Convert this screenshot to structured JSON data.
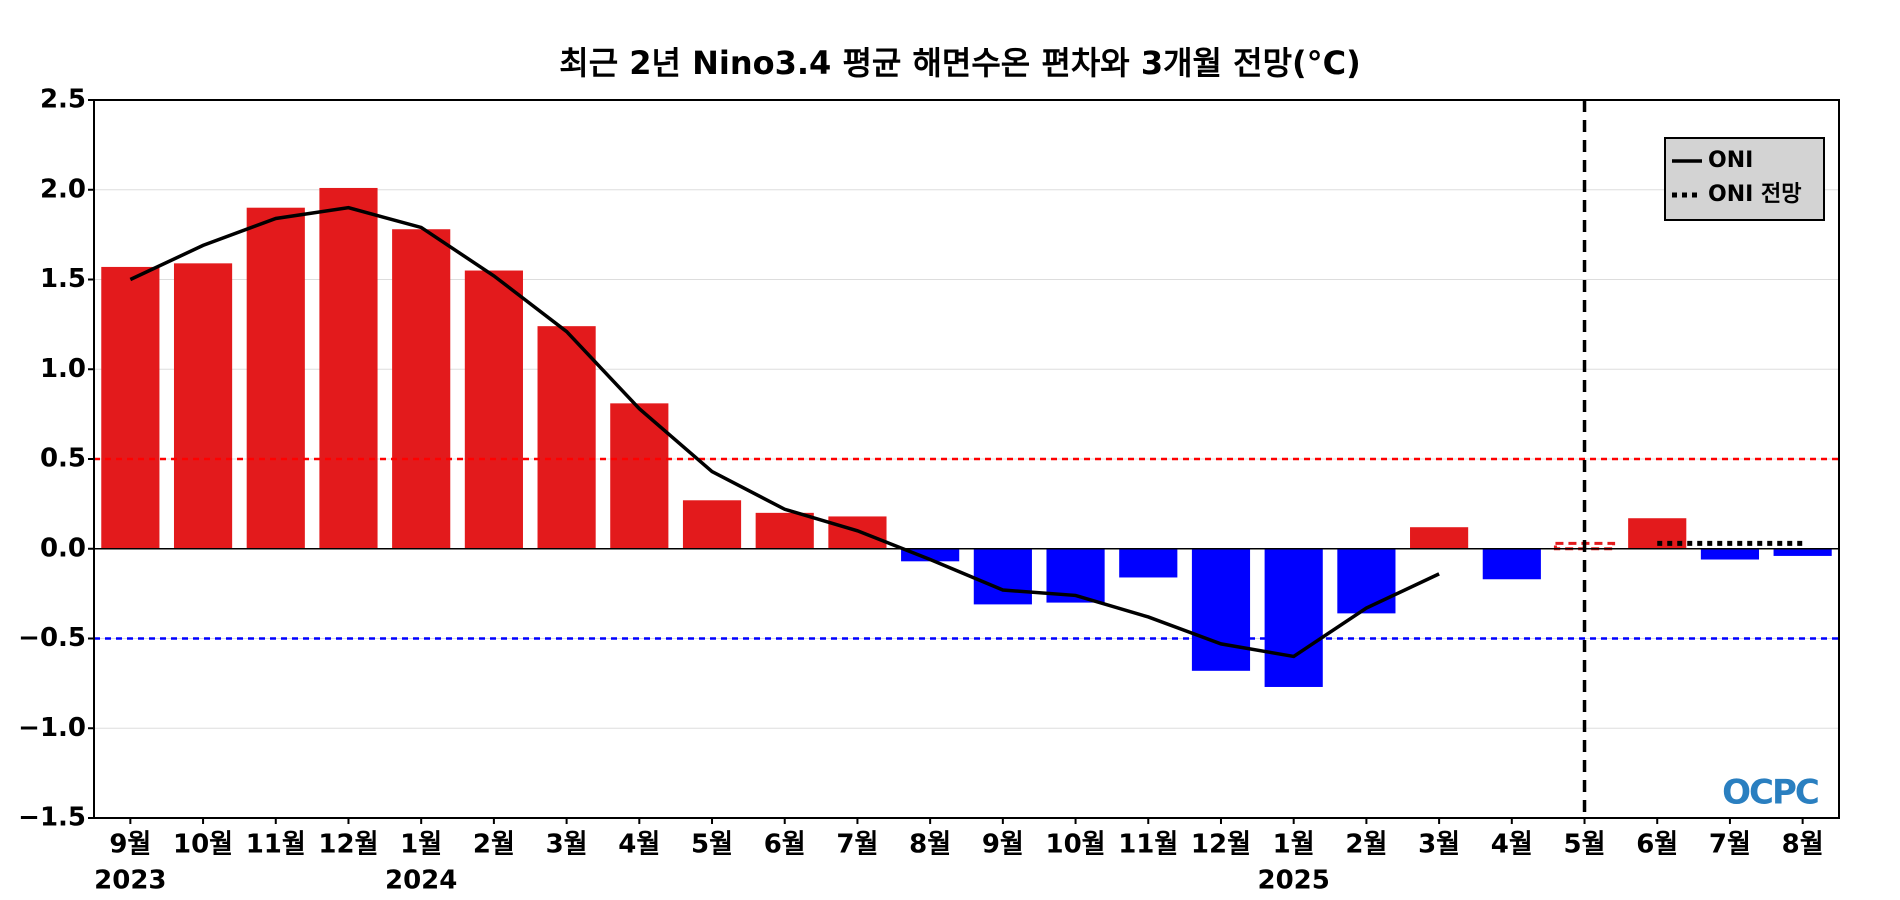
{
  "chart_data": {
    "type": "bar",
    "title": "최근 2년 Nino3.4 평균 해면수온 편차와 3개월 전망(°C)",
    "categories": [
      "9월",
      "10월",
      "11월",
      "12월",
      "1월",
      "2월",
      "3월",
      "4월",
      "5월",
      "6월",
      "7월",
      "8월",
      "9월",
      "10월",
      "11월",
      "12월",
      "1월",
      "2월",
      "3월",
      "4월",
      "5월",
      "6월",
      "7월",
      "8월"
    ],
    "x_sublabels": [
      "2023",
      null,
      null,
      null,
      "2024",
      null,
      null,
      null,
      null,
      null,
      null,
      null,
      null,
      null,
      null,
      null,
      "2025",
      null,
      null,
      null,
      null,
      null,
      null,
      null
    ],
    "values": [
      1.57,
      1.59,
      1.9,
      2.01,
      1.78,
      1.55,
      1.24,
      0.81,
      0.27,
      0.2,
      0.18,
      -0.07,
      -0.31,
      -0.3,
      -0.16,
      -0.68,
      -0.77,
      -0.36,
      0.12,
      -0.17,
      0.03,
      0.17,
      -0.06,
      -0.04
    ],
    "positive_color": "#e31a1c",
    "negative_color": "#0000ff",
    "dashed_bars": [
      20
    ],
    "series": [
      {
        "name": "ONI",
        "color": "#000000",
        "style": "solid",
        "values": [
          1.5,
          1.69,
          1.84,
          1.9,
          1.79,
          1.52,
          1.21,
          0.78,
          0.43,
          0.22,
          0.1,
          -0.06,
          -0.23,
          -0.26,
          -0.38,
          -0.53,
          -0.6,
          -0.33,
          -0.14,
          null,
          null,
          null,
          null,
          null
        ]
      },
      {
        "name": "ONI 전망",
        "color": "#000000",
        "style": "dotted",
        "values": [
          null,
          null,
          null,
          null,
          null,
          null,
          null,
          null,
          null,
          null,
          null,
          null,
          null,
          null,
          null,
          null,
          null,
          null,
          null,
          null,
          null,
          0.03,
          0.03,
          0.03
        ]
      }
    ],
    "hlines": [
      {
        "value": 0.5,
        "color": "#ff0000"
      },
      {
        "value": -0.5,
        "color": "#0000ff"
      }
    ],
    "vline_at_index": 20,
    "ylim": [
      -1.5,
      2.5
    ],
    "yticks": [
      {
        "value": -1.5,
        "label": "−1.5"
      },
      {
        "value": -1.0,
        "label": "−1.0"
      },
      {
        "value": -0.5,
        "label": "−0.5"
      },
      {
        "value": 0,
        "label": "0.0"
      },
      0.5,
      {
        "value": 1.0,
        "label": "1.0"
      },
      1.5,
      {
        "value": 2.0,
        "label": "2.0"
      },
      2.5
    ],
    "grid": true,
    "legend": "upper right",
    "logo": "OCPC"
  }
}
